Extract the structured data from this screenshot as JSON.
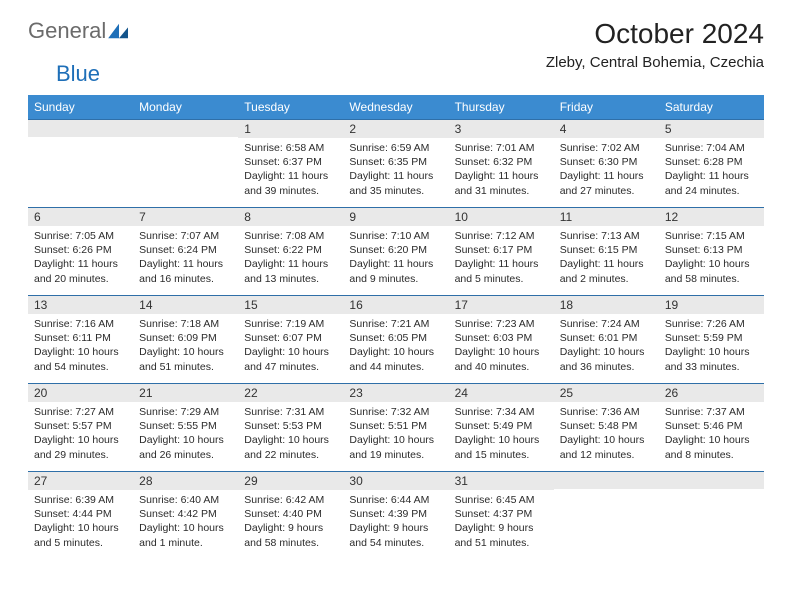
{
  "logo": {
    "gray": "General",
    "blue": "Blue"
  },
  "header": {
    "title": "October 2024",
    "subtitle": "Zleby, Central Bohemia, Czechia"
  },
  "colors": {
    "header_bg": "#3b8bd0",
    "header_text": "#ffffff",
    "row_border": "#2f6fa8",
    "daynum_bg": "#e9e9e9",
    "body_text": "#2b2b2b",
    "logo_gray": "#6b6b6b",
    "logo_blue": "#1e6fb8"
  },
  "weekdays": [
    "Sunday",
    "Monday",
    "Tuesday",
    "Wednesday",
    "Thursday",
    "Friday",
    "Saturday"
  ],
  "weeks": [
    [
      null,
      null,
      {
        "n": "1",
        "sunrise": "6:58 AM",
        "sunset": "6:37 PM",
        "daylight": "11 hours and 39 minutes."
      },
      {
        "n": "2",
        "sunrise": "6:59 AM",
        "sunset": "6:35 PM",
        "daylight": "11 hours and 35 minutes."
      },
      {
        "n": "3",
        "sunrise": "7:01 AM",
        "sunset": "6:32 PM",
        "daylight": "11 hours and 31 minutes."
      },
      {
        "n": "4",
        "sunrise": "7:02 AM",
        "sunset": "6:30 PM",
        "daylight": "11 hours and 27 minutes."
      },
      {
        "n": "5",
        "sunrise": "7:04 AM",
        "sunset": "6:28 PM",
        "daylight": "11 hours and 24 minutes."
      }
    ],
    [
      {
        "n": "6",
        "sunrise": "7:05 AM",
        "sunset": "6:26 PM",
        "daylight": "11 hours and 20 minutes."
      },
      {
        "n": "7",
        "sunrise": "7:07 AM",
        "sunset": "6:24 PM",
        "daylight": "11 hours and 16 minutes."
      },
      {
        "n": "8",
        "sunrise": "7:08 AM",
        "sunset": "6:22 PM",
        "daylight": "11 hours and 13 minutes."
      },
      {
        "n": "9",
        "sunrise": "7:10 AM",
        "sunset": "6:20 PM",
        "daylight": "11 hours and 9 minutes."
      },
      {
        "n": "10",
        "sunrise": "7:12 AM",
        "sunset": "6:17 PM",
        "daylight": "11 hours and 5 minutes."
      },
      {
        "n": "11",
        "sunrise": "7:13 AM",
        "sunset": "6:15 PM",
        "daylight": "11 hours and 2 minutes."
      },
      {
        "n": "12",
        "sunrise": "7:15 AM",
        "sunset": "6:13 PM",
        "daylight": "10 hours and 58 minutes."
      }
    ],
    [
      {
        "n": "13",
        "sunrise": "7:16 AM",
        "sunset": "6:11 PM",
        "daylight": "10 hours and 54 minutes."
      },
      {
        "n": "14",
        "sunrise": "7:18 AM",
        "sunset": "6:09 PM",
        "daylight": "10 hours and 51 minutes."
      },
      {
        "n": "15",
        "sunrise": "7:19 AM",
        "sunset": "6:07 PM",
        "daylight": "10 hours and 47 minutes."
      },
      {
        "n": "16",
        "sunrise": "7:21 AM",
        "sunset": "6:05 PM",
        "daylight": "10 hours and 44 minutes."
      },
      {
        "n": "17",
        "sunrise": "7:23 AM",
        "sunset": "6:03 PM",
        "daylight": "10 hours and 40 minutes."
      },
      {
        "n": "18",
        "sunrise": "7:24 AM",
        "sunset": "6:01 PM",
        "daylight": "10 hours and 36 minutes."
      },
      {
        "n": "19",
        "sunrise": "7:26 AM",
        "sunset": "5:59 PM",
        "daylight": "10 hours and 33 minutes."
      }
    ],
    [
      {
        "n": "20",
        "sunrise": "7:27 AM",
        "sunset": "5:57 PM",
        "daylight": "10 hours and 29 minutes."
      },
      {
        "n": "21",
        "sunrise": "7:29 AM",
        "sunset": "5:55 PM",
        "daylight": "10 hours and 26 minutes."
      },
      {
        "n": "22",
        "sunrise": "7:31 AM",
        "sunset": "5:53 PM",
        "daylight": "10 hours and 22 minutes."
      },
      {
        "n": "23",
        "sunrise": "7:32 AM",
        "sunset": "5:51 PM",
        "daylight": "10 hours and 19 minutes."
      },
      {
        "n": "24",
        "sunrise": "7:34 AM",
        "sunset": "5:49 PM",
        "daylight": "10 hours and 15 minutes."
      },
      {
        "n": "25",
        "sunrise": "7:36 AM",
        "sunset": "5:48 PM",
        "daylight": "10 hours and 12 minutes."
      },
      {
        "n": "26",
        "sunrise": "7:37 AM",
        "sunset": "5:46 PM",
        "daylight": "10 hours and 8 minutes."
      }
    ],
    [
      {
        "n": "27",
        "sunrise": "6:39 AM",
        "sunset": "4:44 PM",
        "daylight": "10 hours and 5 minutes."
      },
      {
        "n": "28",
        "sunrise": "6:40 AM",
        "sunset": "4:42 PM",
        "daylight": "10 hours and 1 minute."
      },
      {
        "n": "29",
        "sunrise": "6:42 AM",
        "sunset": "4:40 PM",
        "daylight": "9 hours and 58 minutes."
      },
      {
        "n": "30",
        "sunrise": "6:44 AM",
        "sunset": "4:39 PM",
        "daylight": "9 hours and 54 minutes."
      },
      {
        "n": "31",
        "sunrise": "6:45 AM",
        "sunset": "4:37 PM",
        "daylight": "9 hours and 51 minutes."
      },
      null,
      null
    ]
  ],
  "labels": {
    "sunrise": "Sunrise:",
    "sunset": "Sunset:",
    "daylight": "Daylight:"
  }
}
